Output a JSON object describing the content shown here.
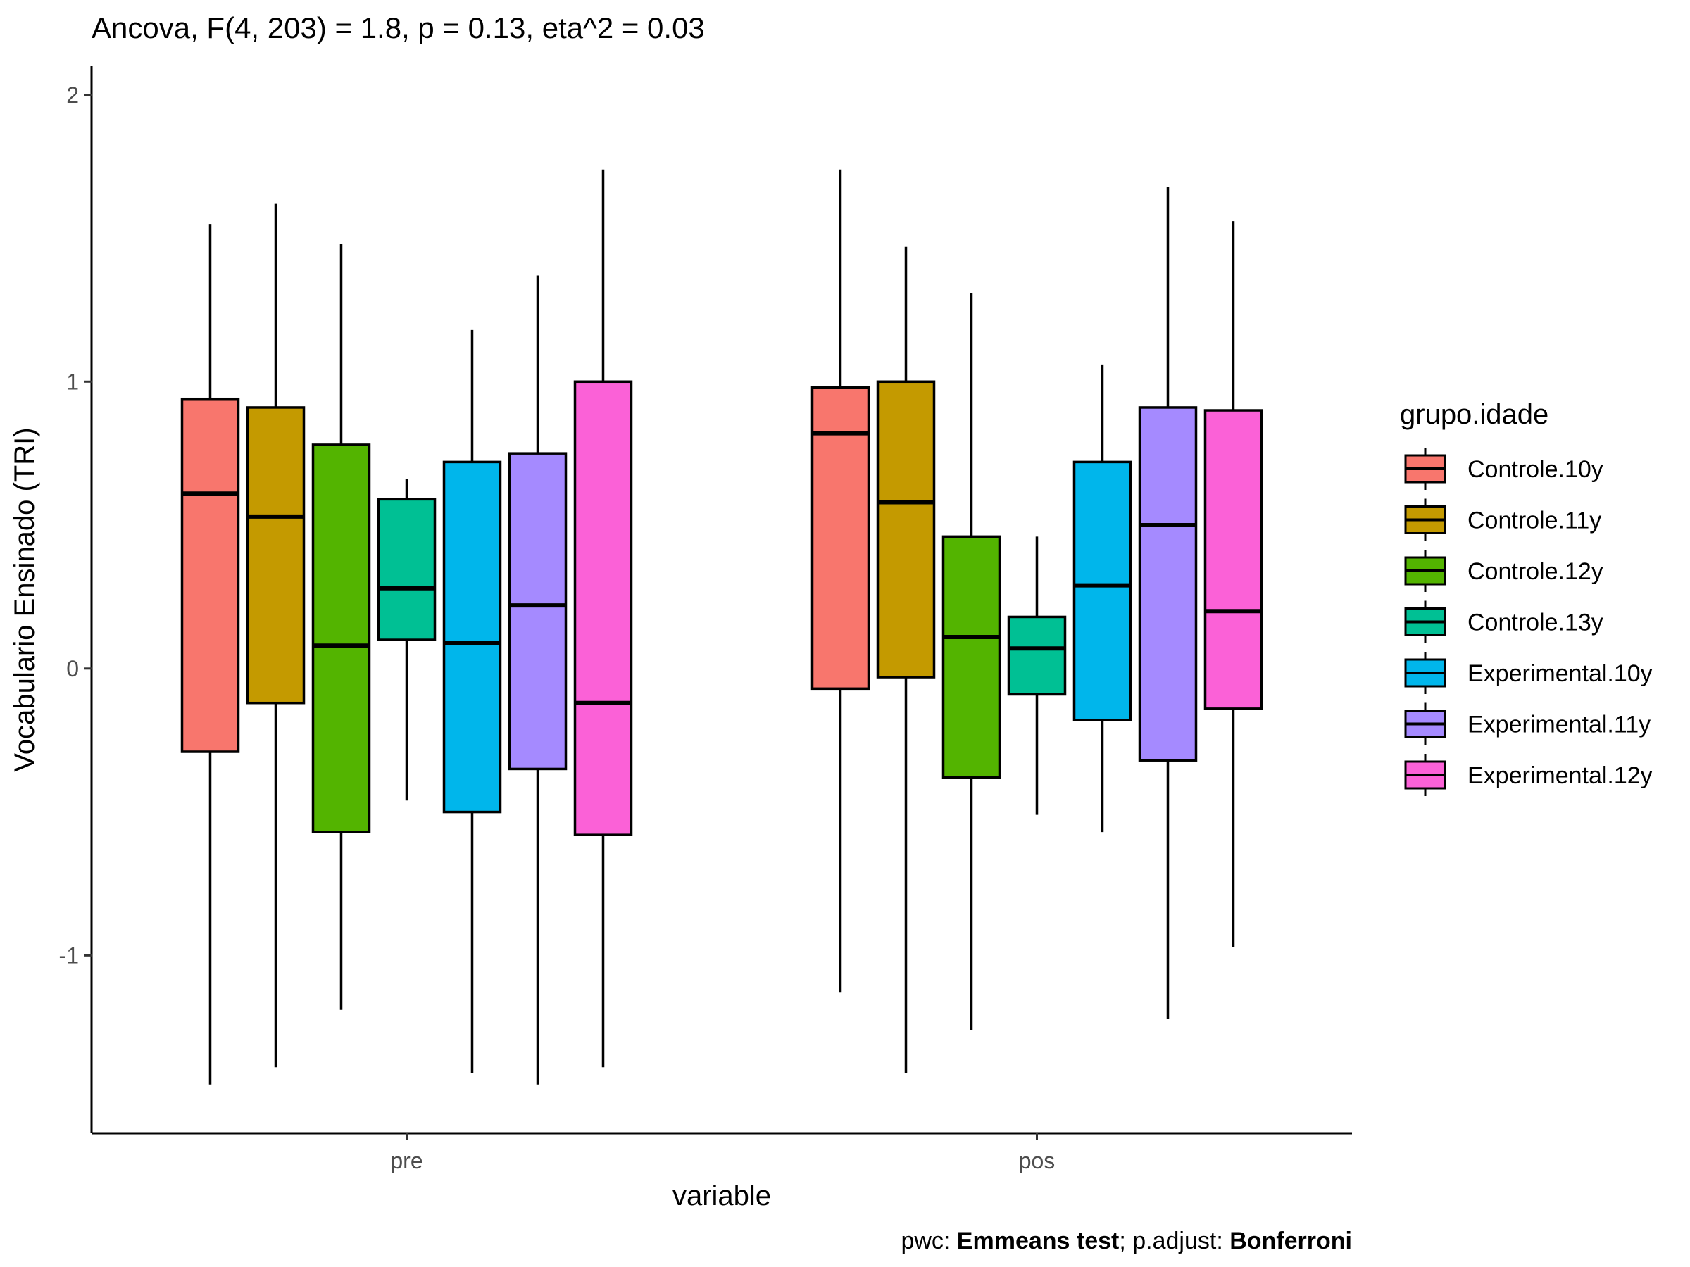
{
  "chart_data": {
    "type": "boxplot",
    "title": "Ancova, F(4, 203) = 1.8, p = 0.13, eta^2 = 0.03",
    "xlabel": "variable",
    "ylabel": "Vocabulario Ensinado (TRI)",
    "categories": [
      "pre",
      "pos"
    ],
    "ylim": [
      -1.62,
      2.1
    ],
    "yticks": [
      2,
      1,
      0,
      -1
    ],
    "ytick_labels": [
      "2",
      "1",
      "0",
      "-1"
    ],
    "grid": false,
    "legend": {
      "title": "grupo.idade",
      "position": "right"
    },
    "series": [
      {
        "name": "Controle.10y",
        "color": "#F8766D",
        "boxes": [
          {
            "category": "pre",
            "min": -1.45,
            "q1": -0.29,
            "median": 0.61,
            "q3": 0.94,
            "max": 1.55
          },
          {
            "category": "pos",
            "min": -1.13,
            "q1": -0.07,
            "median": 0.82,
            "q3": 0.98,
            "max": 1.74
          }
        ]
      },
      {
        "name": "Controle.11y",
        "color": "#C49A00",
        "boxes": [
          {
            "category": "pre",
            "min": -1.39,
            "q1": -0.12,
            "median": 0.53,
            "q3": 0.91,
            "max": 1.62
          },
          {
            "category": "pos",
            "min": -1.41,
            "q1": -0.03,
            "median": 0.58,
            "q3": 1.0,
            "max": 1.47
          }
        ]
      },
      {
        "name": "Controle.12y",
        "color": "#53B400",
        "boxes": [
          {
            "category": "pre",
            "min": -1.19,
            "q1": -0.57,
            "median": 0.08,
            "q3": 0.78,
            "max": 1.48
          },
          {
            "category": "pos",
            "min": -1.26,
            "q1": -0.38,
            "median": 0.11,
            "q3": 0.46,
            "max": 1.31
          }
        ]
      },
      {
        "name": "Controle.13y",
        "color": "#00C094",
        "boxes": [
          {
            "category": "pre",
            "min": -0.46,
            "q1": 0.1,
            "median": 0.28,
            "q3": 0.59,
            "max": 0.66
          },
          {
            "category": "pos",
            "min": -0.51,
            "q1": -0.09,
            "median": 0.07,
            "q3": 0.18,
            "max": 0.46
          }
        ]
      },
      {
        "name": "Experimental.10y",
        "color": "#00B6EB",
        "boxes": [
          {
            "category": "pre",
            "min": -1.41,
            "q1": -0.5,
            "median": 0.09,
            "q3": 0.72,
            "max": 1.18
          },
          {
            "category": "pos",
            "min": -0.57,
            "q1": -0.18,
            "median": 0.29,
            "q3": 0.72,
            "max": 1.06
          }
        ]
      },
      {
        "name": "Experimental.11y",
        "color": "#A58AFF",
        "boxes": [
          {
            "category": "pre",
            "min": -1.45,
            "q1": -0.35,
            "median": 0.22,
            "q3": 0.75,
            "max": 1.37
          },
          {
            "category": "pos",
            "min": -1.22,
            "q1": -0.32,
            "median": 0.5,
            "q3": 0.91,
            "max": 1.68
          }
        ]
      },
      {
        "name": "Experimental.12y",
        "color": "#FB61D7",
        "boxes": [
          {
            "category": "pre",
            "min": -1.39,
            "q1": -0.58,
            "median": -0.12,
            "q3": 1.0,
            "max": 1.74
          },
          {
            "category": "pos",
            "min": -0.97,
            "q1": -0.14,
            "median": 0.2,
            "q3": 0.9,
            "max": 1.56
          }
        ]
      }
    ]
  },
  "caption": {
    "prefix1": "pwc: ",
    "bold1": "Emmeans test",
    "prefix2": "; p.adjust: ",
    "bold2": "Bonferroni"
  }
}
